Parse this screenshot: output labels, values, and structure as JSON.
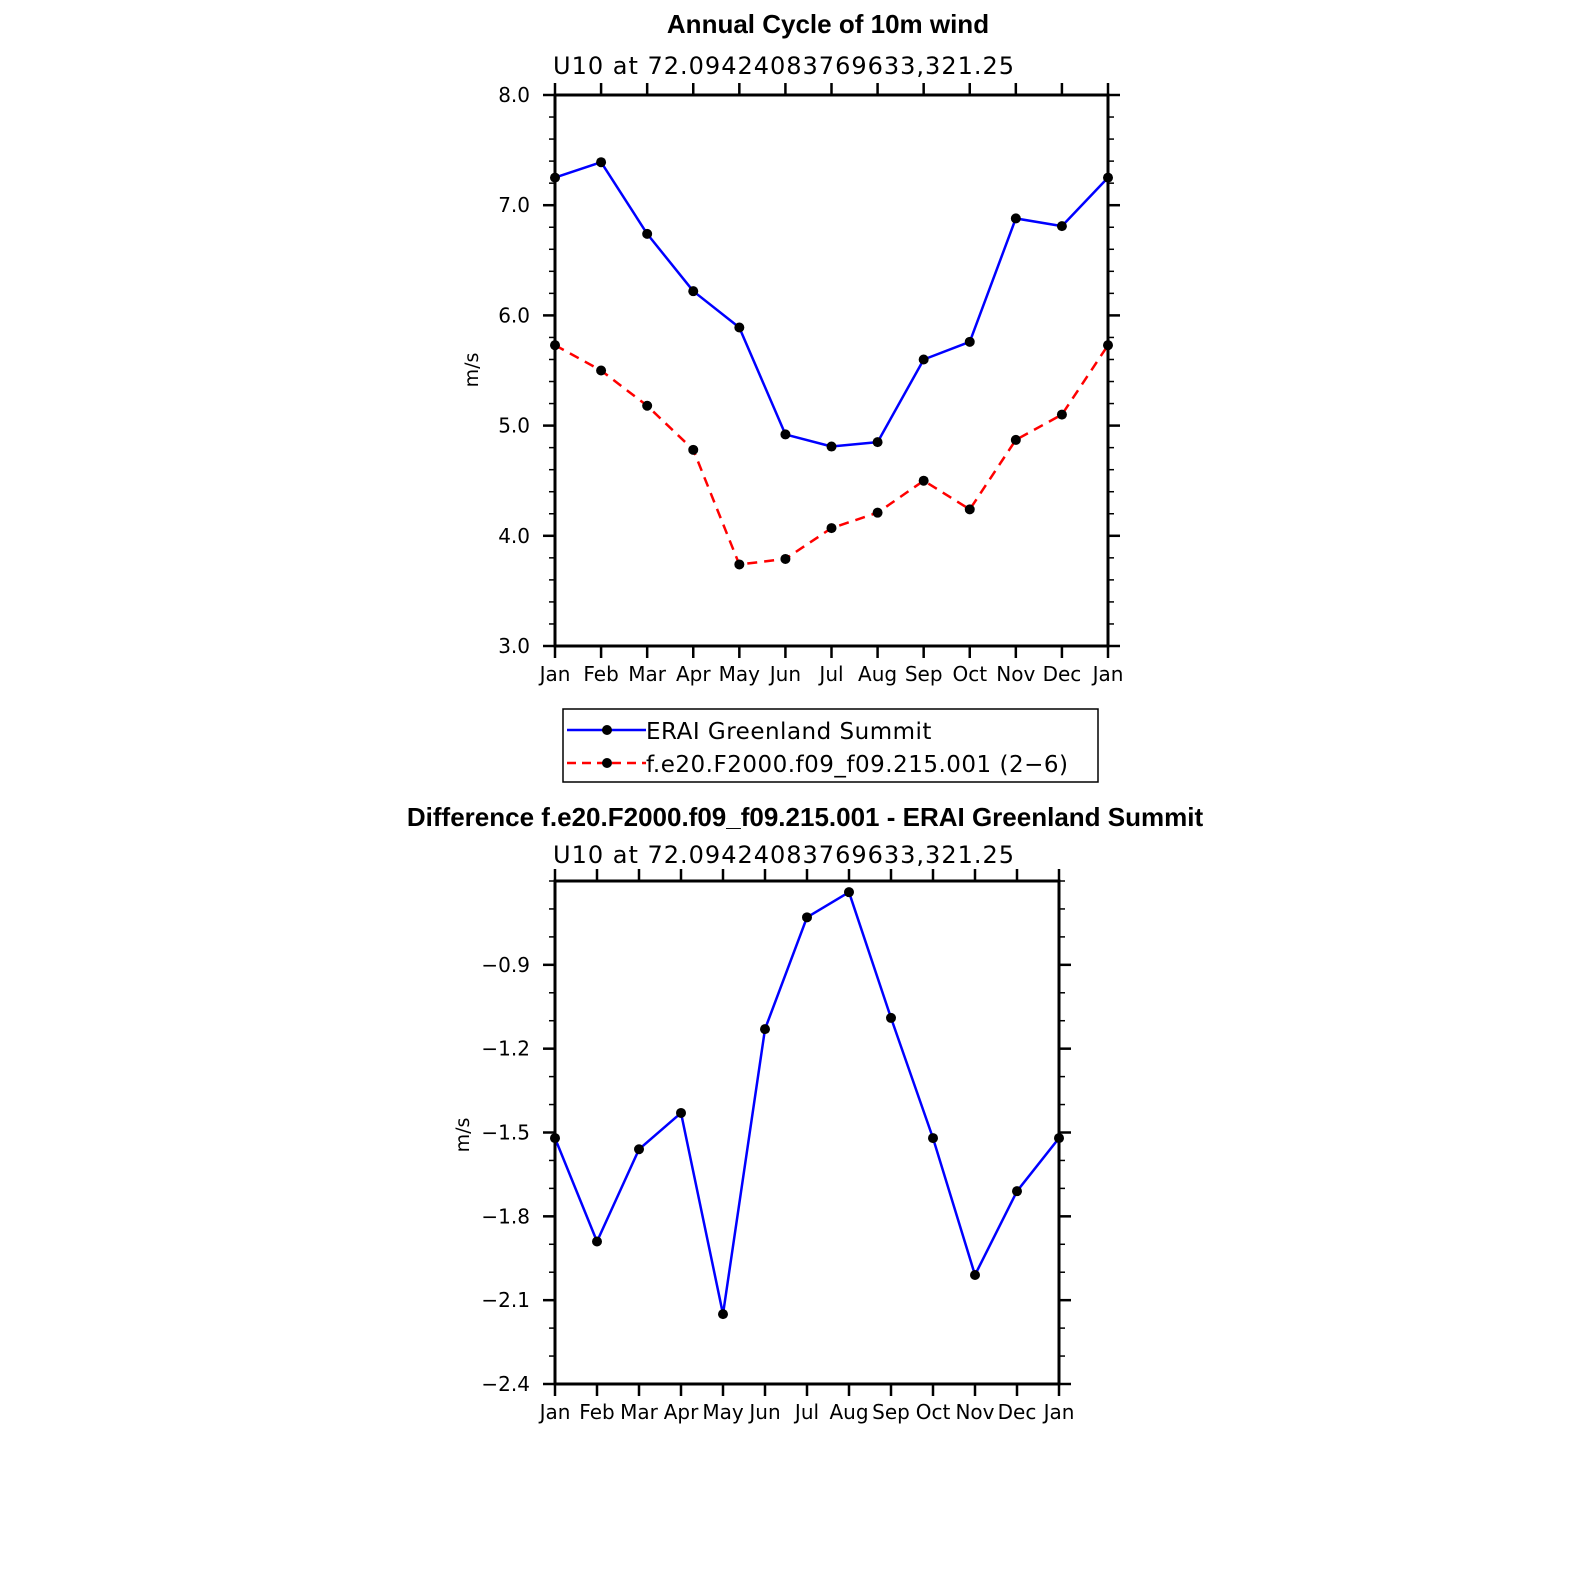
{
  "colors": {
    "series_blue": "#0000ff",
    "series_red": "#ff0000",
    "marker": "#000000"
  },
  "chart_data": [
    {
      "type": "line",
      "title": "Annual Cycle of 10m wind",
      "subtitle": "U10 at 72.09424083769633,321.25",
      "xlabel": "",
      "ylabel": "m/s",
      "categories": [
        "Jan",
        "Feb",
        "Mar",
        "Apr",
        "May",
        "Jun",
        "Jul",
        "Aug",
        "Sep",
        "Oct",
        "Nov",
        "Dec",
        "Jan"
      ],
      "ylim": [
        3.0,
        8.0
      ],
      "yticks": [
        3.0,
        4.0,
        5.0,
        6.0,
        7.0,
        8.0
      ],
      "ytick_labels": [
        "3.0",
        "4.0",
        "5.0",
        "6.0",
        "7.0",
        "8.0"
      ],
      "y_minor_step": 0.2,
      "series": [
        {
          "name": "ERAI Greenland Summit",
          "style": "solid",
          "color": "#0000ff",
          "values": [
            7.25,
            7.39,
            6.74,
            6.22,
            5.89,
            4.92,
            4.81,
            4.85,
            5.6,
            5.76,
            6.88,
            6.81,
            7.25
          ]
        },
        {
          "name": "f.e20.F2000.f09_f09.215.001 (2−6)",
          "style": "dashed",
          "color": "#ff0000",
          "values": [
            5.73,
            5.5,
            5.18,
            4.78,
            3.74,
            3.79,
            4.07,
            4.21,
            4.5,
            4.24,
            4.87,
            5.1,
            5.73
          ]
        }
      ],
      "legend_placement": "bottom"
    },
    {
      "type": "line",
      "title": "Difference f.e20.F2000.f09_f09.215.001 - ERAI Greenland Summit",
      "subtitle": "U10 at 72.09424083769633,321.25",
      "xlabel": "",
      "ylabel": "m/s",
      "categories": [
        "Jan",
        "Feb",
        "Mar",
        "Apr",
        "May",
        "Jun",
        "Jul",
        "Aug",
        "Sep",
        "Oct",
        "Nov",
        "Dec",
        "Jan"
      ],
      "ylim": [
        -2.4,
        -0.6
      ],
      "yticks": [
        -2.4,
        -2.1,
        -1.8,
        -1.5,
        -1.2,
        -0.9
      ],
      "ytick_labels": [
        "−2.4",
        "−2.1",
        "−1.8",
        "−1.5",
        "−1.2",
        "−0.9"
      ],
      "y_minor_step": 0.1,
      "series": [
        {
          "name": "Difference",
          "style": "solid",
          "color": "#0000ff",
          "values": [
            -1.52,
            -1.89,
            -1.56,
            -1.43,
            -2.15,
            -1.13,
            -0.73,
            -0.64,
            -1.09,
            -1.52,
            -2.01,
            -1.71,
            -1.52
          ]
        }
      ]
    }
  ]
}
